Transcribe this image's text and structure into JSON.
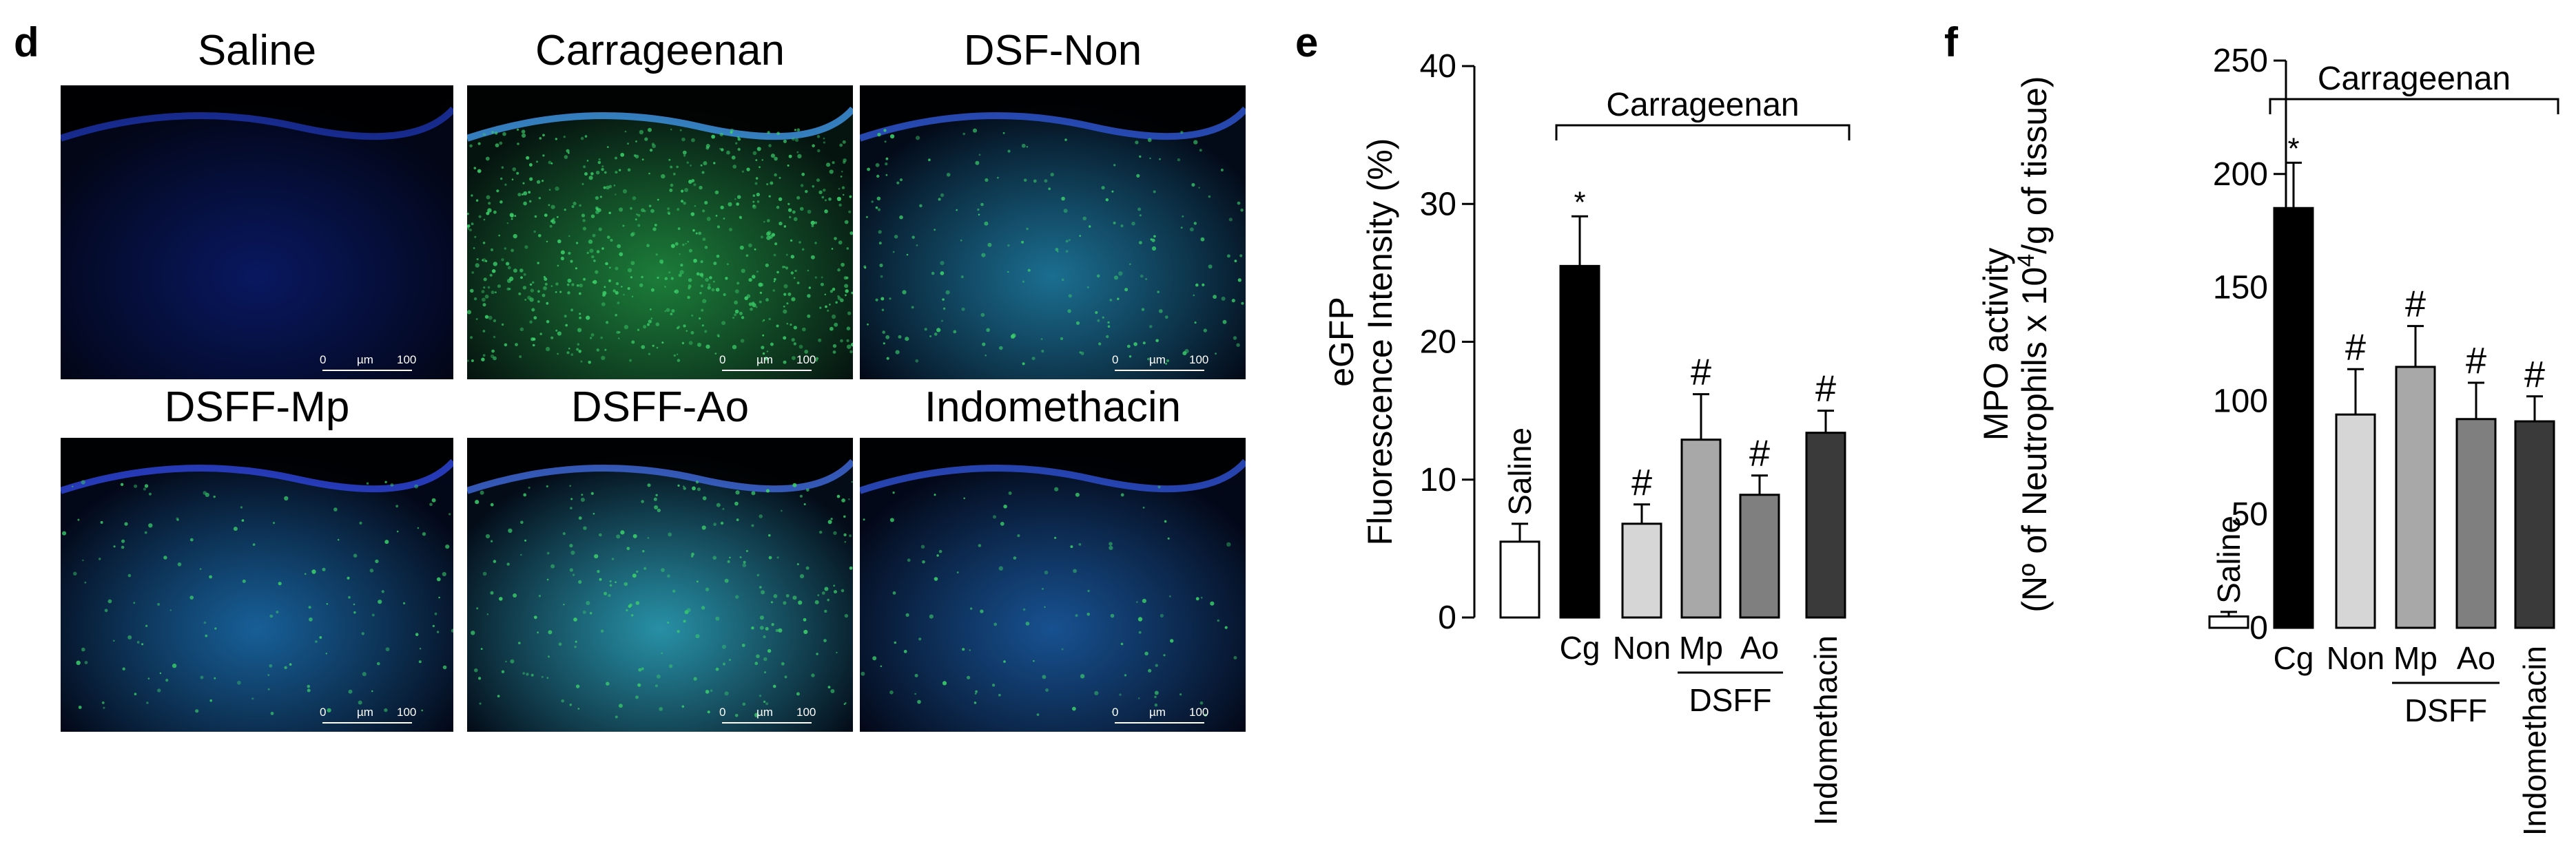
{
  "panels": {
    "d": "d",
    "e": "e",
    "f": "f"
  },
  "micrographs": [
    {
      "title": "Saline",
      "scale_zero": "0",
      "scale_unit": "µm",
      "scale_value": "100"
    },
    {
      "title": "Carrageenan",
      "scale_zero": "0",
      "scale_unit": "µm",
      "scale_value": "100"
    },
    {
      "title": "DSF-Non",
      "scale_zero": "0",
      "scale_unit": "µm",
      "scale_value": "100"
    },
    {
      "title": "DSFF-Mp",
      "scale_zero": "0",
      "scale_unit": "µm",
      "scale_value": "100"
    },
    {
      "title": "DSFF-Ao",
      "scale_zero": "0",
      "scale_unit": "µm",
      "scale_value": "100"
    },
    {
      "title": "Indomethacin",
      "scale_zero": "0",
      "scale_unit": "µm",
      "scale_value": "100"
    }
  ],
  "chart_data": [
    {
      "type": "bar",
      "panel": "e",
      "ylabel_line1": "eGFP",
      "ylabel_line2": "Fluorescence Intensity (%)",
      "ylim": [
        0,
        40
      ],
      "yticks": [
        0,
        10,
        20,
        30,
        40
      ],
      "bracket_label": "Carrageenan",
      "group_label": "DSFF",
      "categories": [
        "Saline",
        "Cg",
        "Non",
        "Mp",
        "Ao",
        "Indomethacin"
      ],
      "values": [
        5.5,
        25.5,
        6.8,
        12.9,
        8.9,
        13.4
      ],
      "errors": [
        1.3,
        3.6,
        1.4,
        3.3,
        1.4,
        1.6
      ],
      "annotations": [
        "",
        "*",
        "#",
        "#",
        "#",
        "#"
      ],
      "colors": [
        "#ffffff",
        "#000000",
        "#d6d6d6",
        "#a8a8a8",
        "#7f7f7f",
        "#3a3a3a"
      ]
    },
    {
      "type": "bar",
      "panel": "f",
      "ylabel_line1": "MPO activity",
      "ylabel_line2_pre": "(Nº of Neutrophils x 10",
      "ylabel_sup": "4",
      "ylabel_line2_post": "/g of tissue)",
      "ylim": [
        0,
        250
      ],
      "yticks": [
        0,
        50,
        100,
        150,
        200,
        250
      ],
      "bracket_label": "Carrageenan",
      "group_label": "DSFF",
      "categories": [
        "Saline",
        "Cg",
        "Non",
        "Mp",
        "Ao",
        "Indomethacin"
      ],
      "values": [
        5,
        185,
        94,
        115,
        92,
        91
      ],
      "errors": [
        2,
        20,
        20,
        18,
        16,
        11
      ],
      "annotations": [
        "",
        "*",
        "#",
        "#",
        "#",
        "#"
      ],
      "colors": [
        "#ffffff",
        "#000000",
        "#d6d6d6",
        "#a8a8a8",
        "#7f7f7f",
        "#3a3a3a"
      ]
    }
  ]
}
